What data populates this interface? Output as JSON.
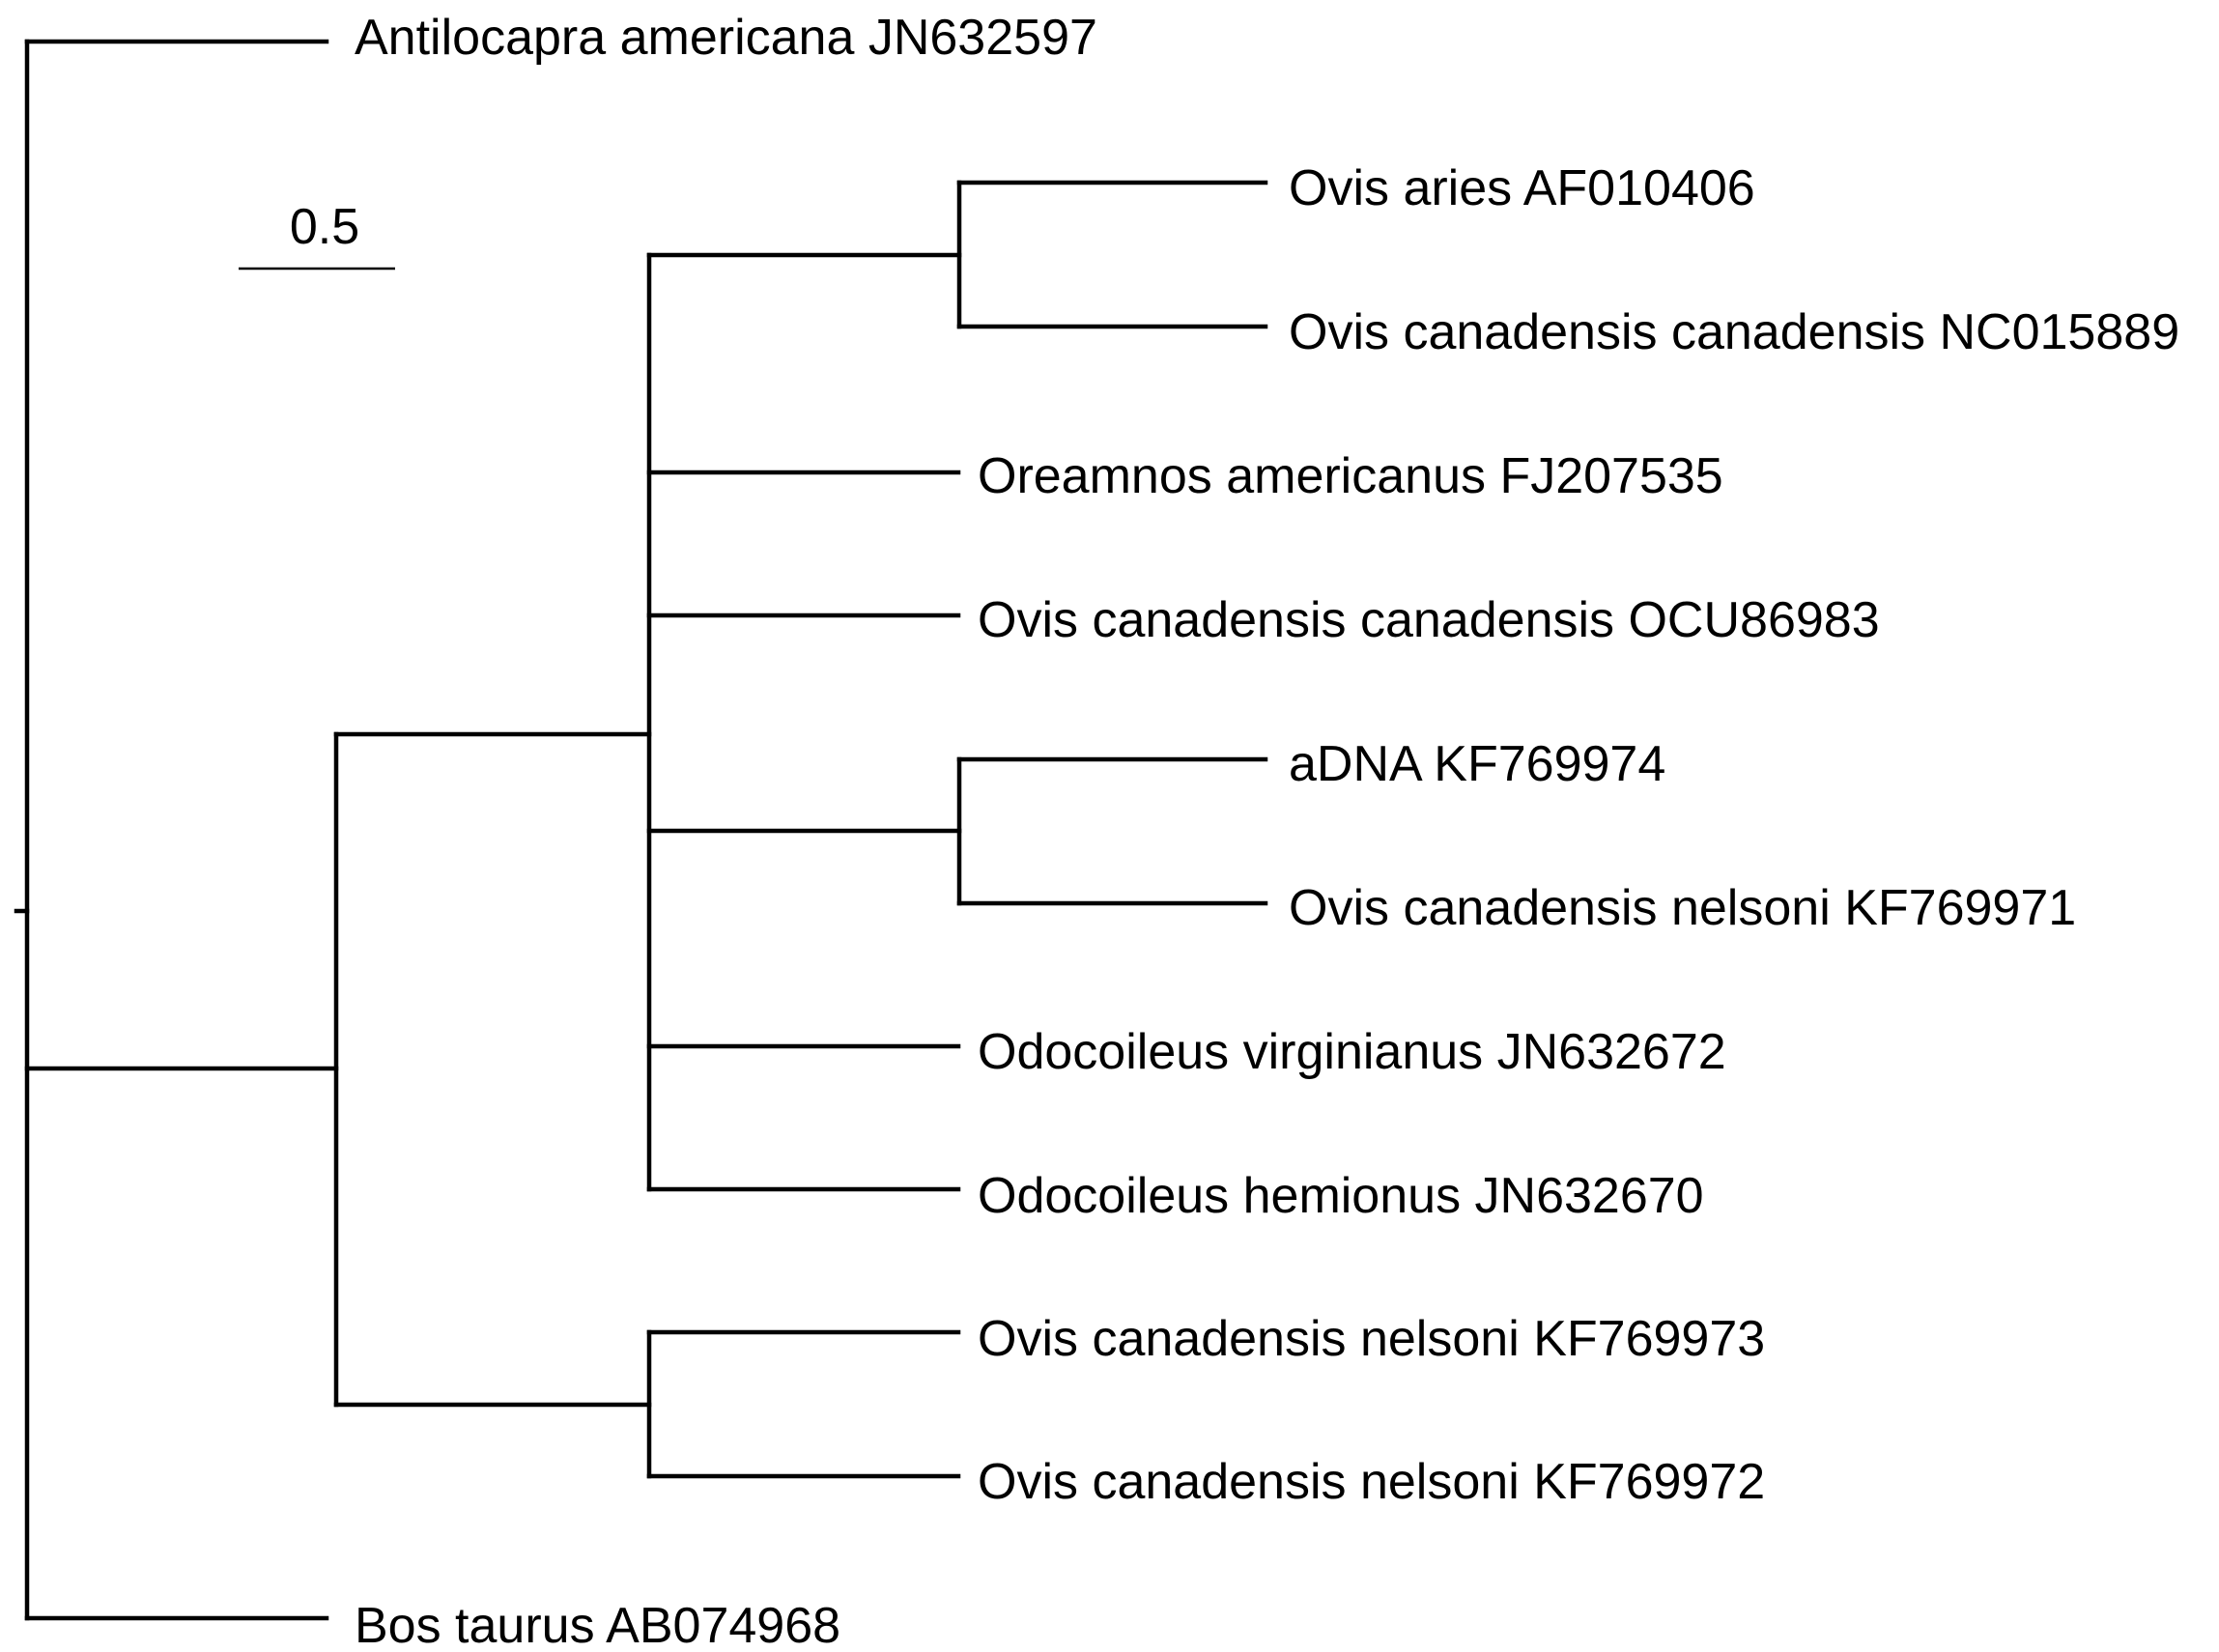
{
  "tree": {
    "scale_bar_label": "0.5",
    "taxa": [
      {
        "id": "antilocapra",
        "label": "Antilocapra americana JN632597"
      },
      {
        "id": "ovis-aries",
        "label": "Ovis aries AF010406"
      },
      {
        "id": "ovis-can-nc",
        "label": "Ovis canadensis canadensis NC015889"
      },
      {
        "id": "oreamnos",
        "label": "Oreamnos americanus FJ207535"
      },
      {
        "id": "ovis-can-ocu",
        "label": "Ovis canadensis canadensis OCU86983"
      },
      {
        "id": "adna",
        "label": "aDNA KF769974"
      },
      {
        "id": "ovis-nel-971",
        "label": "Ovis canadensis nelsoni KF769971"
      },
      {
        "id": "odo-virg",
        "label": "Odocoileus virginianus JN632672"
      },
      {
        "id": "odo-hem",
        "label": "Odocoileus hemionus JN632670"
      },
      {
        "id": "ovis-nel-973",
        "label": "Ovis canadensis nelsoni KF769973"
      },
      {
        "id": "ovis-nel-972",
        "label": "Ovis canadensis nelsoni KF769972"
      },
      {
        "id": "bos",
        "label": "Bos taurus AB074968"
      }
    ]
  }
}
